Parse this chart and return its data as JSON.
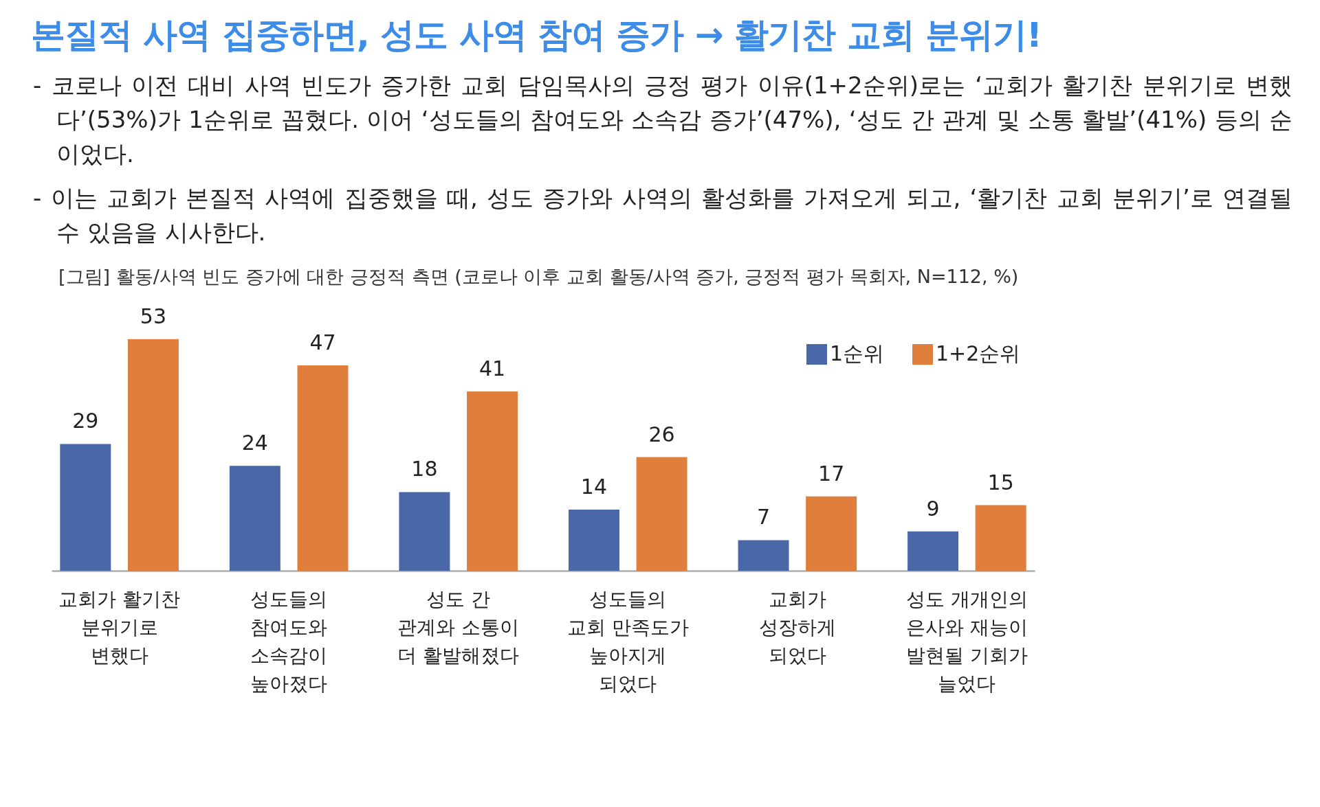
{
  "chart_data": {
    "type": "bar",
    "title": "본질적 사역 집중하면, 성도 사역 참여 증가 → 활기찬 교회 분위기!",
    "annotations": [
      "- 코로나 이전 대비 사역 빈도가 증가한 교회 담임목사의 긍정 평가 이유(1+2순위)로는 ‘교회가 활기찬 분위기로 변했다’(53%)가 1순위로 꼽혔다. 이어 ‘성도들의 참여도와 소속감 증가’(47%), ‘성도 간 관계 및 소통 활발’(41%) 등의 순이었다.",
      "- 이는 교회가 본질적 사역에 집중했을 때, 성도 증가와 사역의 활성화를 가져오게 되고, ‘활기찬 교회 분위기’로 연결될 수 있음을 시사한다.",
      "[그림] 활동/사역 빈도 증가에 대한 긍정적 측면 (코로나 이후 교회 활동/사역 증가, 긍정적 평가 목회자, N=112, %)"
    ],
    "categories": [
      "교회가 활기찬\n분위기로\n변했다",
      "성도들의\n참여도와\n소속감이\n높아졌다",
      "성도 간\n관계와 소통이\n더 활발해졌다",
      "성도들의\n교회 만족도가\n높아지게\n되었다",
      "교회가\n성장하게\n되었다",
      "성도 개개인의\n은사와 재능이\n발현될 기회가\n늘었다"
    ],
    "series": [
      {
        "name": "1순위",
        "color": "#4a67a8",
        "values": [
          29,
          24,
          18,
          14,
          7,
          9
        ]
      },
      {
        "name": "1+2순위",
        "color": "#e07f3c",
        "values": [
          53,
          47,
          41,
          26,
          17,
          15
        ]
      }
    ],
    "data_labels": true,
    "legend": "top right",
    "grid": false
  }
}
